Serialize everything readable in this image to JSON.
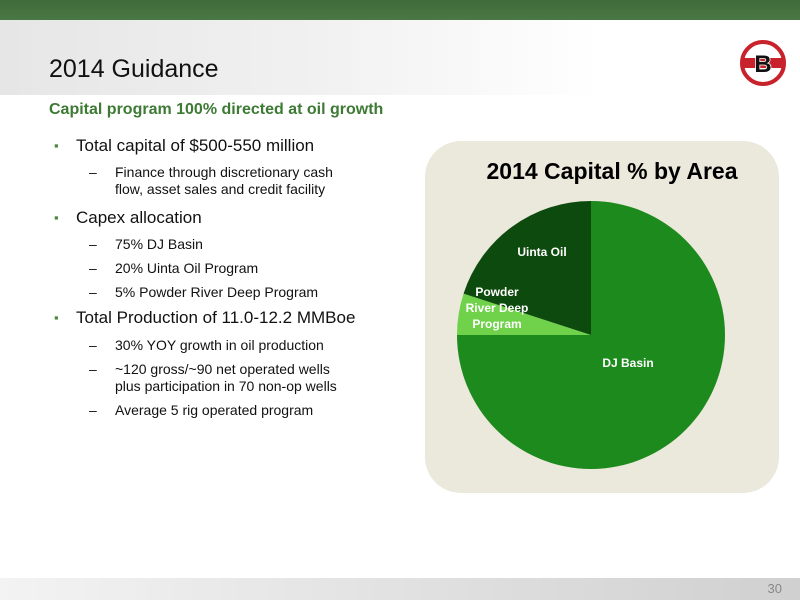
{
  "slide": {
    "title": "2014 Guidance",
    "subtitle": "Capital program 100% directed at oil growth",
    "page_number": "30",
    "logo_letter": "B"
  },
  "bullets": [
    {
      "level": 1,
      "text": "Total capital of $500-550 million"
    },
    {
      "level": 2,
      "lines": [
        "Finance through discretionary cash",
        "flow, asset sales and credit facility"
      ]
    },
    {
      "level": 1,
      "text": "Capex allocation"
    },
    {
      "level": 2,
      "lines": [
        "75% DJ Basin"
      ]
    },
    {
      "level": 2,
      "lines": [
        "20% Uinta Oil Program"
      ]
    },
    {
      "level": 2,
      "lines": [
        "5% Powder River Deep Program"
      ]
    },
    {
      "level": 1,
      "text": "Total Production of 11.0-12.2 MMBoe"
    },
    {
      "level": 2,
      "lines": [
        "30% YOY growth in oil production"
      ]
    },
    {
      "level": 2,
      "lines": [
        "~120 gross/~90 net operated wells",
        "plus participation in 70 non-op wells"
      ]
    },
    {
      "level": 2,
      "lines": [
        "Average 5 rig operated program"
      ]
    }
  ],
  "chart_data": {
    "type": "pie",
    "title": "2014 Capital % by Area",
    "slices": [
      {
        "label": "DJ Basin",
        "value": 75,
        "color": "#1d8a1d"
      },
      {
        "label": "Powder River Deep Program",
        "value": 5,
        "color": "#6fd24a"
      },
      {
        "label": "Uinta Oil",
        "value": 20,
        "color": "#0d4a0d"
      }
    ]
  },
  "colors": {
    "accent": "#3d7a34",
    "top_bar": "#4a7844",
    "card_bg": "#ebe8dc",
    "logo_red": "#c8232c"
  }
}
